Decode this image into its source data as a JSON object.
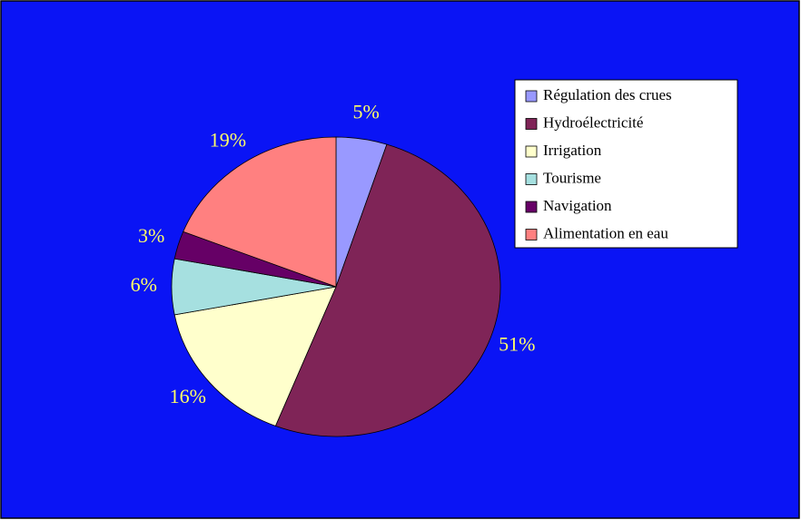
{
  "chart_data": {
    "type": "pie",
    "categories": [
      "Régulation des crues",
      "Hydroélectricité",
      "Irrigation",
      "Tourisme",
      "Navigation",
      "Alimentation en eau"
    ],
    "values": [
      5,
      51,
      16,
      6,
      3,
      19
    ],
    "value_labels": [
      "5%",
      "51%",
      "16%",
      "6%",
      "3%",
      "19%"
    ],
    "colors": [
      "#9999ff",
      "#7f2457",
      "#ffffcc",
      "#a6e0e0",
      "#660066",
      "#ff8080"
    ],
    "legend": "right"
  }
}
